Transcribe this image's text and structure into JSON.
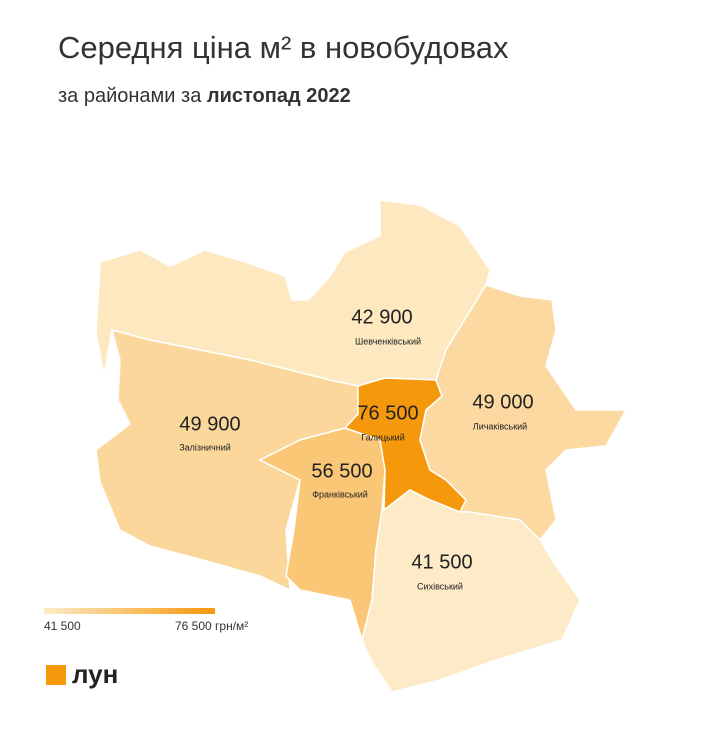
{
  "header": {
    "title": "Середня ціна м² в новобудовах",
    "subtitle": "за районами за",
    "period": "листопад 2022"
  },
  "regions": [
    {
      "name": "Шевченківський",
      "value": 42900,
      "value_label": "42 900"
    },
    {
      "name": "Залізничний",
      "value": 49900,
      "value_label": "49 900"
    },
    {
      "name": "Франківський",
      "value": 56500,
      "value_label": "56 500"
    },
    {
      "name": "Галицький",
      "value": 76500,
      "value_label": "76 500"
    },
    {
      "name": "Личаківський",
      "value": 49000,
      "value_label": "49 000"
    },
    {
      "name": "Сихівський",
      "value": 41500,
      "value_label": "41 500"
    }
  ],
  "legend": {
    "min": {
      "value": 41500,
      "label": "41 500"
    },
    "max": {
      "value": 76500,
      "label": "76 500"
    },
    "unit": "грн/м²",
    "min_color": "#fdebc8",
    "max_color": "#f5980c"
  },
  "logo": "лун"
}
